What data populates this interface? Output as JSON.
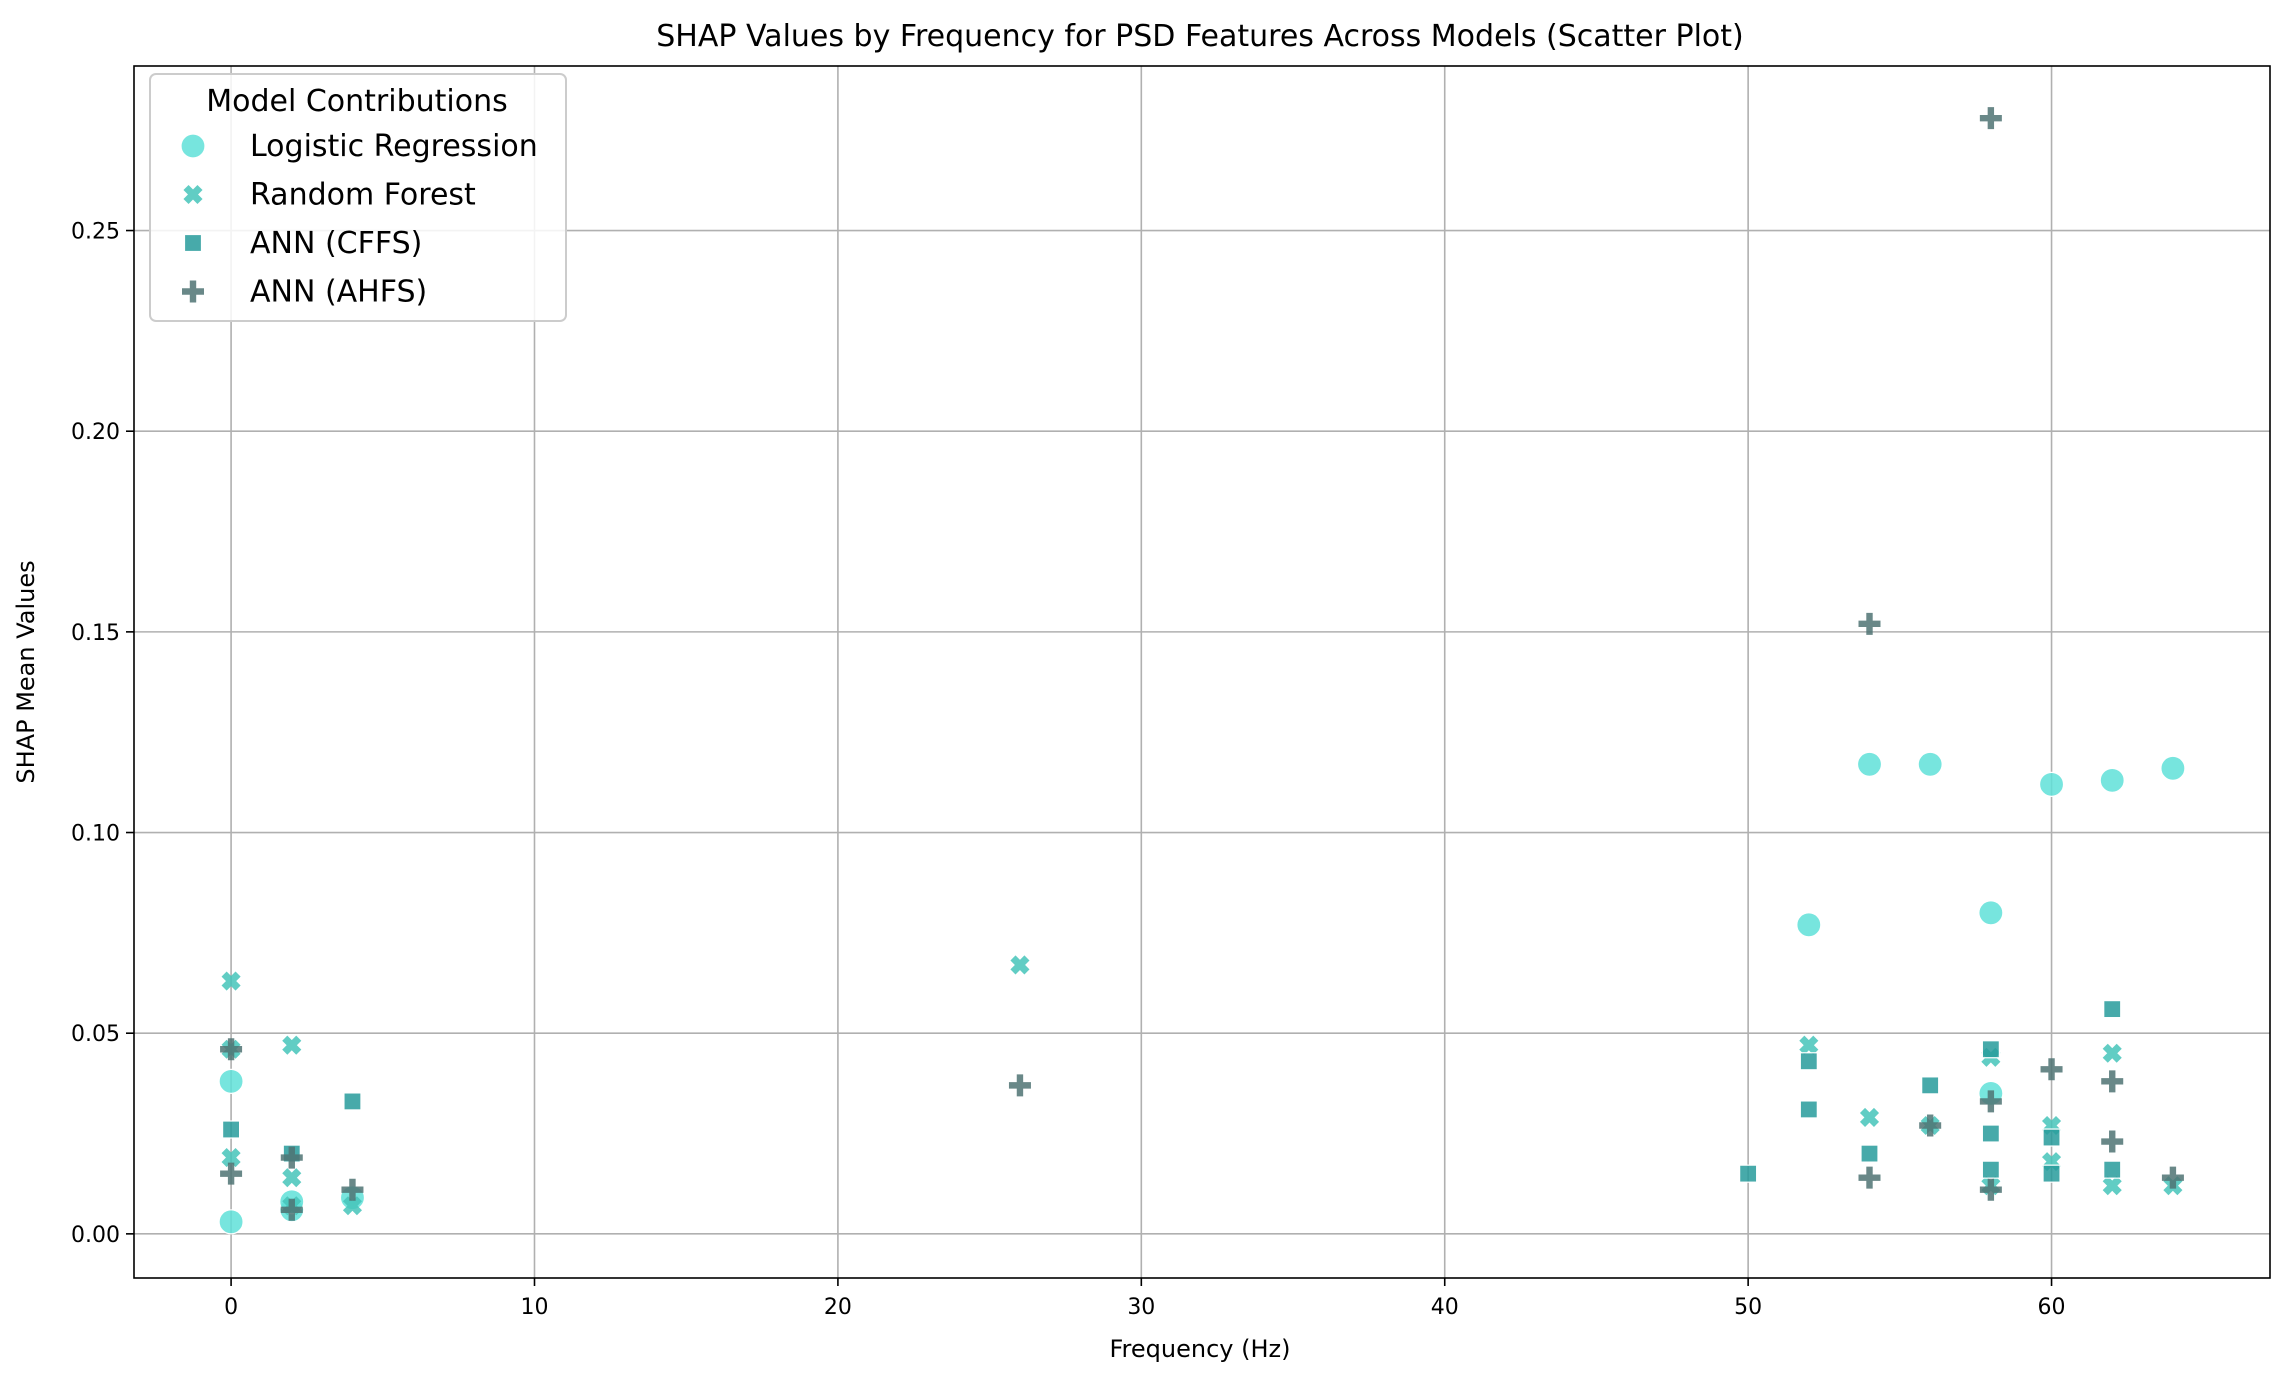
{
  "chart_data": {
    "type": "scatter",
    "title": "SHAP Values by Frequency for PSD Features Across Models (Scatter Plot)",
    "xlabel": "Frequency (Hz)",
    "ylabel": "SHAP Mean Values",
    "xlim": [
      -3.2,
      67.2
    ],
    "ylim": [
      -0.011,
      0.291
    ],
    "xticks": [
      0,
      10,
      20,
      30,
      40,
      50,
      60
    ],
    "yticks": [
      0.0,
      0.05,
      0.1,
      0.15,
      0.2,
      0.25
    ],
    "ytick_labels": [
      "0.00",
      "0.05",
      "0.10",
      "0.15",
      "0.20",
      "0.25"
    ],
    "grid": true,
    "legend": {
      "title": "Model Contributions",
      "placement": "top-left"
    },
    "series": [
      {
        "name": "Logistic Regression",
        "marker": "circle",
        "color": "#5fe0d8",
        "points": [
          [
            0,
            0.038
          ],
          [
            0,
            0.003
          ],
          [
            2,
            0.006
          ],
          [
            2,
            0.008
          ],
          [
            4,
            0.009
          ],
          [
            52,
            0.077
          ],
          [
            54,
            0.117
          ],
          [
            56,
            0.117
          ],
          [
            58,
            0.08
          ],
          [
            58,
            0.035
          ],
          [
            60,
            0.112
          ],
          [
            62,
            0.113
          ],
          [
            64,
            0.116
          ]
        ]
      },
      {
        "name": "Random Forest",
        "marker": "x",
        "color": "#45c4ba",
        "points": [
          [
            0,
            0.063
          ],
          [
            0,
            0.046
          ],
          [
            0,
            0.019
          ],
          [
            2,
            0.047
          ],
          [
            2,
            0.014
          ],
          [
            2,
            0.007
          ],
          [
            4,
            0.007
          ],
          [
            26,
            0.067
          ],
          [
            52,
            0.047
          ],
          [
            54,
            0.029
          ],
          [
            56,
            0.027
          ],
          [
            58,
            0.044
          ],
          [
            58,
            0.012
          ],
          [
            60,
            0.027
          ],
          [
            60,
            0.018
          ],
          [
            62,
            0.045
          ],
          [
            62,
            0.012
          ],
          [
            64,
            0.012
          ]
        ]
      },
      {
        "name": "ANN (CFFS)",
        "marker": "square",
        "color": "#279b9b",
        "points": [
          [
            0,
            0.026
          ],
          [
            2,
            0.02
          ],
          [
            4,
            0.033
          ],
          [
            50,
            0.015
          ],
          [
            52,
            0.043
          ],
          [
            52,
            0.031
          ],
          [
            54,
            0.02
          ],
          [
            56,
            0.037
          ],
          [
            58,
            0.046
          ],
          [
            58,
            0.025
          ],
          [
            58,
            0.016
          ],
          [
            60,
            0.024
          ],
          [
            60,
            0.015
          ],
          [
            62,
            0.056
          ],
          [
            62,
            0.016
          ]
        ]
      },
      {
        "name": "ANN (AHFS)",
        "marker": "plus",
        "color": "#4f7373",
        "points": [
          [
            0,
            0.015
          ],
          [
            0,
            0.046
          ],
          [
            2,
            0.019
          ],
          [
            2,
            0.006
          ],
          [
            4,
            0.011
          ],
          [
            26,
            0.037
          ],
          [
            54,
            0.152
          ],
          [
            54,
            0.014
          ],
          [
            56,
            0.027
          ],
          [
            58,
            0.278
          ],
          [
            58,
            0.033
          ],
          [
            58,
            0.011
          ],
          [
            60,
            0.041
          ],
          [
            62,
            0.038
          ],
          [
            62,
            0.023
          ],
          [
            64,
            0.014
          ]
        ]
      }
    ]
  }
}
